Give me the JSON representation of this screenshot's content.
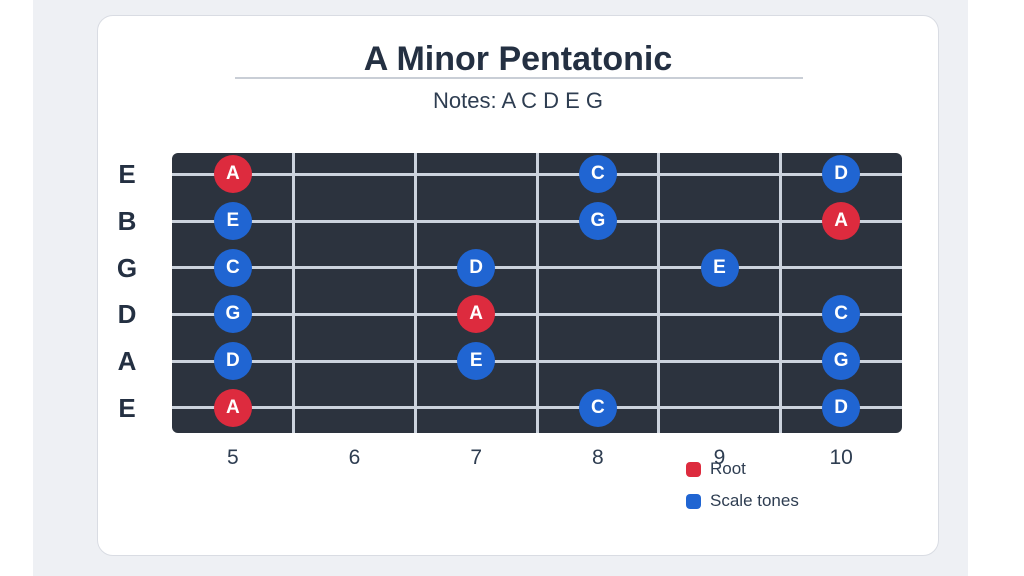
{
  "header": {
    "title": "A Minor Pentatonic",
    "subtitle": "Notes: A C D E G"
  },
  "colors": {
    "root": "#dd2b3e",
    "scale": "#2065d2",
    "board": "#2c333e",
    "line": "#ccd3dd"
  },
  "fretboard": {
    "strings": [
      "E",
      "B",
      "G",
      "D",
      "A",
      "E"
    ],
    "frets": [
      "5",
      "6",
      "7",
      "8",
      "9",
      "10"
    ],
    "notes": [
      {
        "string": 0,
        "fret": 5,
        "label": "A",
        "type": "root"
      },
      {
        "string": 0,
        "fret": 8,
        "label": "C",
        "type": "scale"
      },
      {
        "string": 0,
        "fret": 10,
        "label": "D",
        "type": "scale"
      },
      {
        "string": 1,
        "fret": 5,
        "label": "E",
        "type": "scale"
      },
      {
        "string": 1,
        "fret": 8,
        "label": "G",
        "type": "scale"
      },
      {
        "string": 1,
        "fret": 10,
        "label": "A",
        "type": "root"
      },
      {
        "string": 2,
        "fret": 5,
        "label": "C",
        "type": "scale"
      },
      {
        "string": 2,
        "fret": 7,
        "label": "D",
        "type": "scale"
      },
      {
        "string": 2,
        "fret": 9,
        "label": "E",
        "type": "scale"
      },
      {
        "string": 3,
        "fret": 5,
        "label": "G",
        "type": "scale"
      },
      {
        "string": 3,
        "fret": 7,
        "label": "A",
        "type": "root"
      },
      {
        "string": 3,
        "fret": 10,
        "label": "C",
        "type": "scale"
      },
      {
        "string": 4,
        "fret": 5,
        "label": "D",
        "type": "scale"
      },
      {
        "string": 4,
        "fret": 7,
        "label": "E",
        "type": "scale"
      },
      {
        "string": 4,
        "fret": 10,
        "label": "G",
        "type": "scale"
      },
      {
        "string": 5,
        "fret": 5,
        "label": "A",
        "type": "root"
      },
      {
        "string": 5,
        "fret": 8,
        "label": "C",
        "type": "scale"
      },
      {
        "string": 5,
        "fret": 10,
        "label": "D",
        "type": "scale"
      }
    ]
  },
  "legend": {
    "items": [
      {
        "label": "Root",
        "type": "root"
      },
      {
        "label": "Scale tones",
        "type": "scale"
      }
    ]
  }
}
